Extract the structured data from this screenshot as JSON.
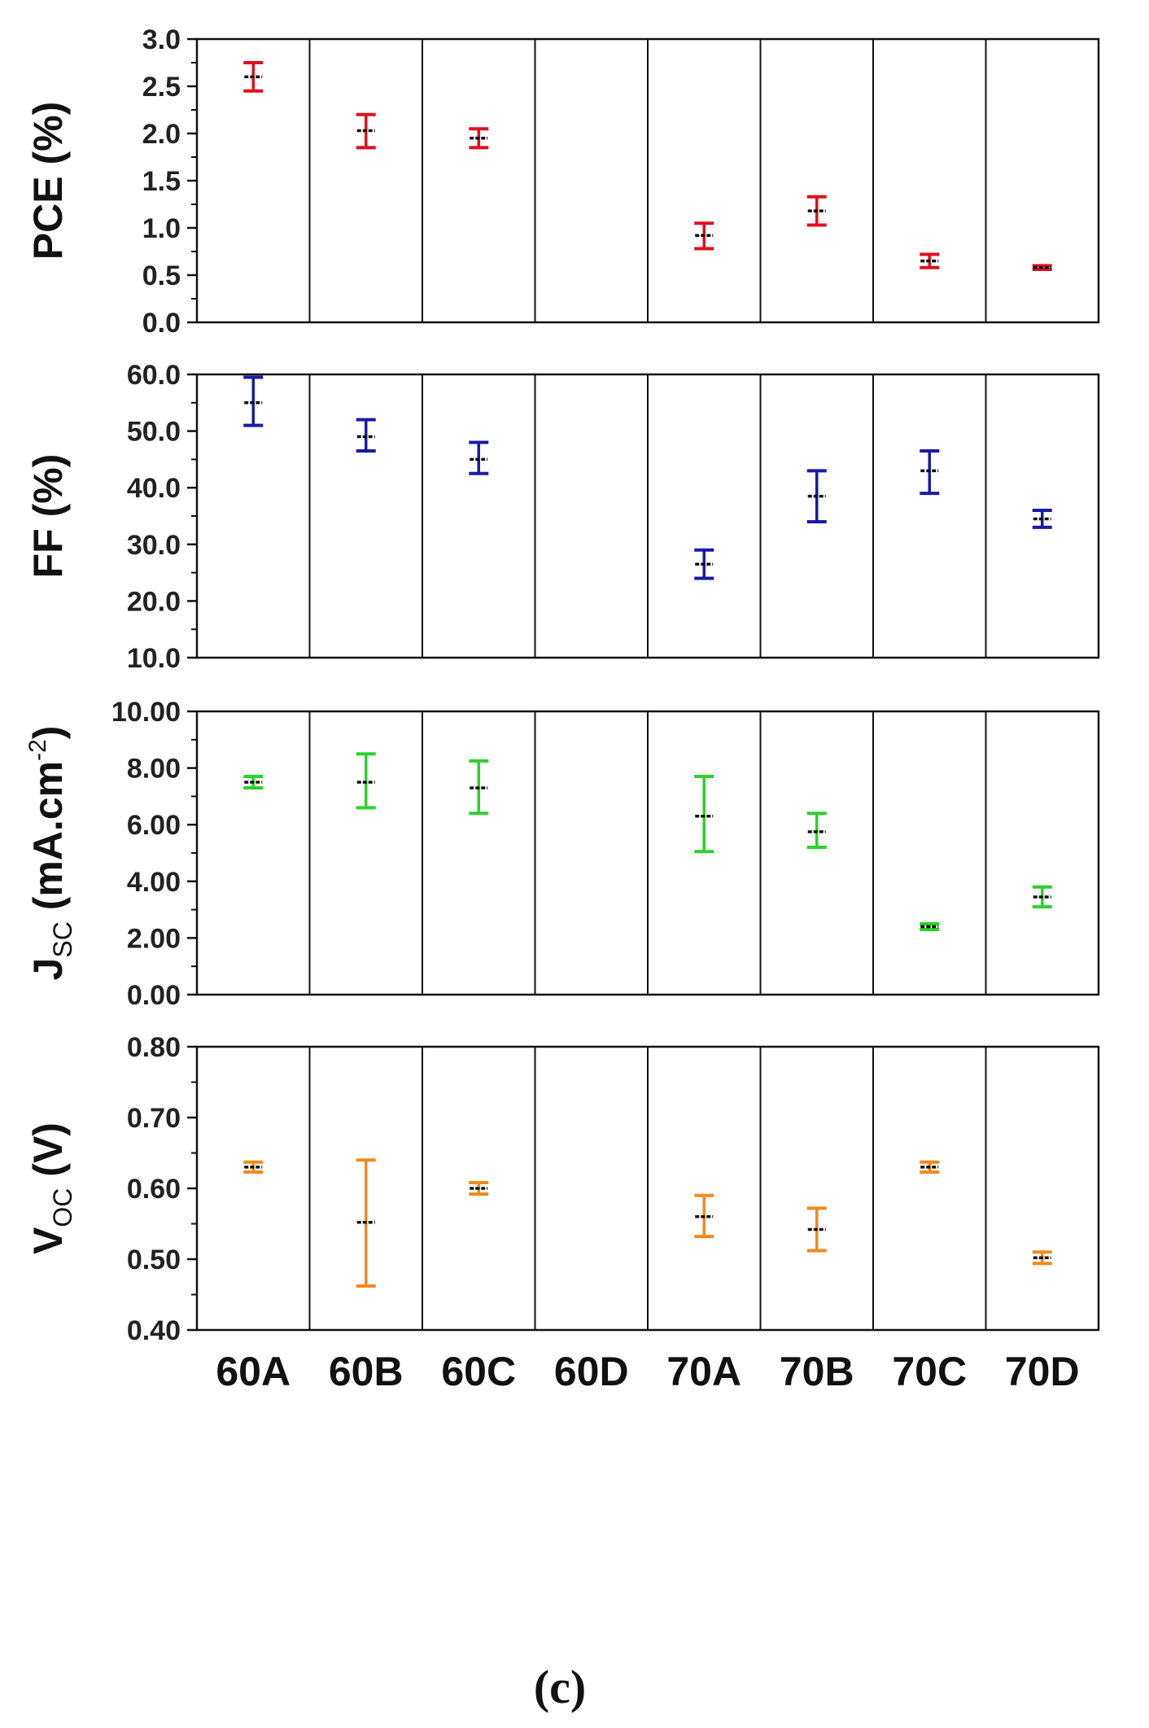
{
  "chart_data": [
    {
      "type": "scatter",
      "ylabel": "PCE (%)",
      "ylim": [
        0.0,
        3.0
      ],
      "yticks": [
        "0.0",
        "0.5",
        "1.0",
        "1.5",
        "2.0",
        "2.5",
        "3.0"
      ],
      "color": "#e0101c",
      "categories": [
        "60A",
        "60B",
        "60C",
        "60D",
        "70A",
        "70B",
        "70C",
        "70D"
      ],
      "points": [
        {
          "category": "60A",
          "mean": 2.6,
          "low": 2.45,
          "high": 2.75
        },
        {
          "category": "60B",
          "mean": 2.03,
          "low": 1.85,
          "high": 2.2
        },
        {
          "category": "60C",
          "mean": 1.95,
          "low": 1.85,
          "high": 2.05
        },
        {
          "category": "60D",
          "mean": null,
          "low": null,
          "high": null
        },
        {
          "category": "70A",
          "mean": 0.92,
          "low": 0.78,
          "high": 1.05
        },
        {
          "category": "70B",
          "mean": 1.18,
          "low": 1.03,
          "high": 1.33
        },
        {
          "category": "70C",
          "mean": 0.65,
          "low": 0.58,
          "high": 0.72
        },
        {
          "category": "70D",
          "mean": 0.58,
          "low": 0.56,
          "high": 0.6
        }
      ]
    },
    {
      "type": "scatter",
      "ylabel": "FF (%)",
      "ylim": [
        10.0,
        60.0
      ],
      "yticks": [
        "10.0",
        "20.0",
        "30.0",
        "40.0",
        "50.0",
        "60.0"
      ],
      "color": "#1a1aa8",
      "categories": [
        "60A",
        "60B",
        "60C",
        "60D",
        "70A",
        "70B",
        "70C",
        "70D"
      ],
      "points": [
        {
          "category": "60A",
          "mean": 55.0,
          "low": 51.0,
          "high": 59.5
        },
        {
          "category": "60B",
          "mean": 49.0,
          "low": 46.5,
          "high": 52.0
        },
        {
          "category": "60C",
          "mean": 45.0,
          "low": 42.5,
          "high": 48.0
        },
        {
          "category": "60D",
          "mean": null,
          "low": null,
          "high": null
        },
        {
          "category": "70A",
          "mean": 26.5,
          "low": 24.0,
          "high": 29.0
        },
        {
          "category": "70B",
          "mean": 38.5,
          "low": 34.0,
          "high": 43.0
        },
        {
          "category": "70C",
          "mean": 43.0,
          "low": 39.0,
          "high": 46.5
        },
        {
          "category": "70D",
          "mean": 34.5,
          "low": 33.0,
          "high": 36.0
        }
      ]
    },
    {
      "type": "scatter",
      "ylabel": "J",
      "ylabel_sub": "SC",
      "ylabel_unit": " (mA.cm",
      "ylabel_sup": "-2",
      "ylabel_end": ")",
      "ylim": [
        0.0,
        10.0
      ],
      "yticks": [
        "0.00",
        "2.00",
        "4.00",
        "6.00",
        "8.00",
        "10.00"
      ],
      "color": "#2bd12b",
      "categories": [
        "60A",
        "60B",
        "60C",
        "60D",
        "70A",
        "70B",
        "70C",
        "70D"
      ],
      "points": [
        {
          "category": "60A",
          "mean": 7.5,
          "low": 7.3,
          "high": 7.7
        },
        {
          "category": "60B",
          "mean": 7.5,
          "low": 6.6,
          "high": 8.5
        },
        {
          "category": "60C",
          "mean": 7.3,
          "low": 6.4,
          "high": 8.25
        },
        {
          "category": "60D",
          "mean": null,
          "low": null,
          "high": null
        },
        {
          "category": "70A",
          "mean": 6.3,
          "low": 5.05,
          "high": 7.7
        },
        {
          "category": "70B",
          "mean": 5.75,
          "low": 5.2,
          "high": 6.4
        },
        {
          "category": "70C",
          "mean": 2.4,
          "low": 2.3,
          "high": 2.5
        },
        {
          "category": "70D",
          "mean": 3.45,
          "low": 3.1,
          "high": 3.8
        }
      ]
    },
    {
      "type": "scatter",
      "ylabel": "V",
      "ylabel_sub": "OC",
      "ylabel_unit": " (V)",
      "ylim": [
        0.4,
        0.8
      ],
      "yticks": [
        "0.40",
        "0.50",
        "0.60",
        "0.70",
        "0.80"
      ],
      "color": "#f08a1e",
      "categories": [
        "60A",
        "60B",
        "60C",
        "60D",
        "70A",
        "70B",
        "70C",
        "70D"
      ],
      "points": [
        {
          "category": "60A",
          "mean": 0.63,
          "low": 0.623,
          "high": 0.637
        },
        {
          "category": "60B",
          "mean": 0.552,
          "low": 0.462,
          "high": 0.64
        },
        {
          "category": "60C",
          "mean": 0.6,
          "low": 0.592,
          "high": 0.608
        },
        {
          "category": "60D",
          "mean": null,
          "low": null,
          "high": null
        },
        {
          "category": "70A",
          "mean": 0.56,
          "low": 0.532,
          "high": 0.59
        },
        {
          "category": "70B",
          "mean": 0.542,
          "low": 0.512,
          "high": 0.572
        },
        {
          "category": "70C",
          "mean": 0.63,
          "low": 0.623,
          "high": 0.637
        },
        {
          "category": "70D",
          "mean": 0.502,
          "low": 0.494,
          "high": 0.51
        }
      ]
    }
  ],
  "caption": "(c)"
}
